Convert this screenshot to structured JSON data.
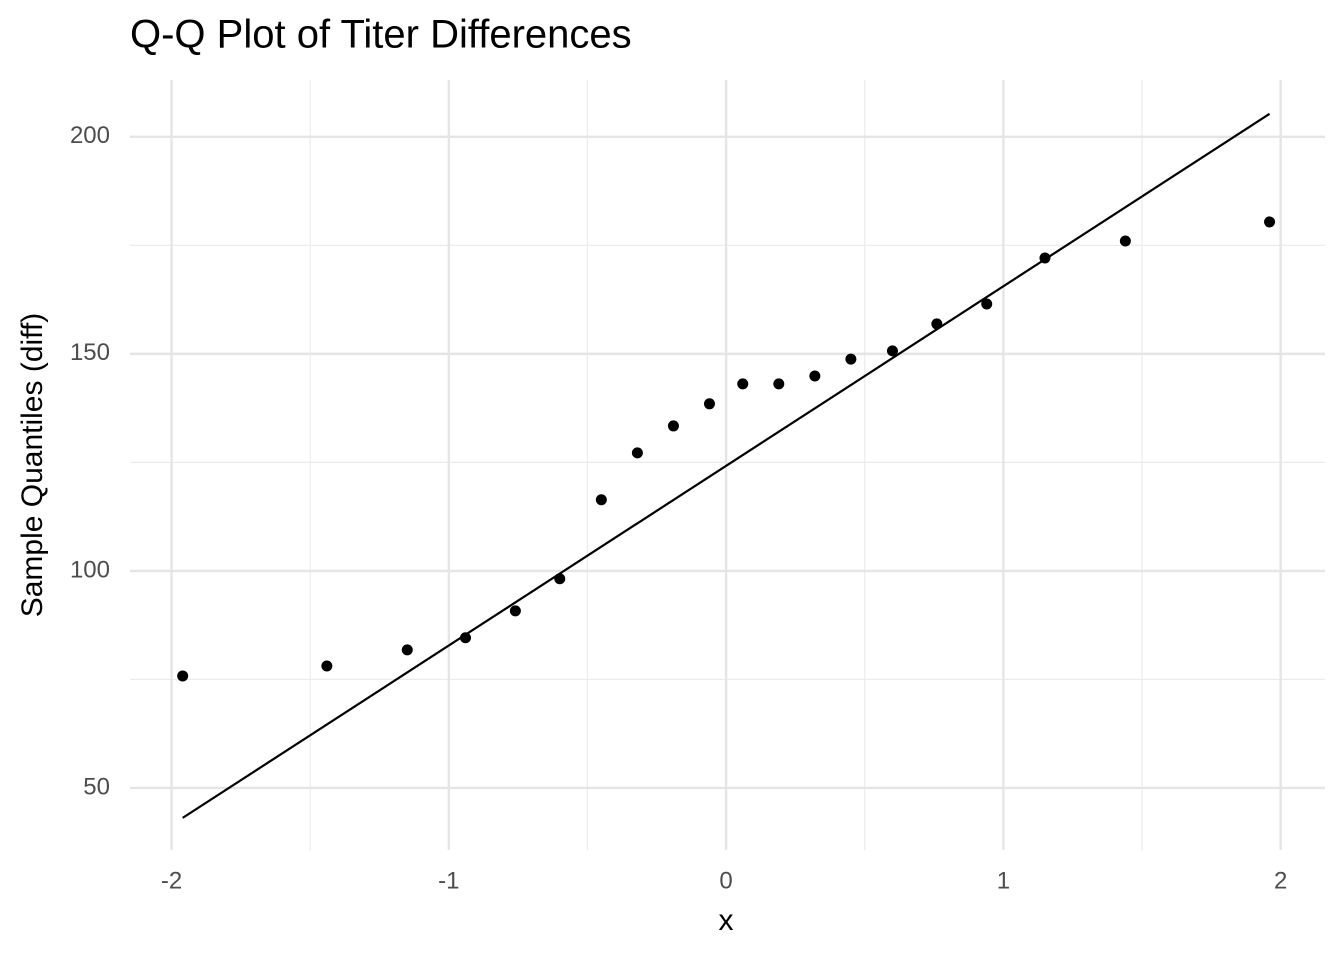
{
  "chart_data": {
    "type": "scatter",
    "title": "Q-Q Plot of Titer Differences",
    "x_label": "x",
    "y_label": "Sample Quantiles (diff)",
    "x": [
      -1.96,
      -1.44,
      -1.15,
      -0.94,
      -0.76,
      -0.6,
      -0.45,
      -0.32,
      -0.19,
      -0.06,
      0.06,
      0.19,
      0.32,
      0.45,
      0.6,
      0.76,
      0.94,
      1.15,
      1.44,
      1.96
    ],
    "y": [
      75.8,
      78.1,
      81.8,
      84.6,
      90.8,
      98.2,
      116.4,
      127.2,
      133.4,
      138.5,
      143.1,
      143.1,
      144.9,
      148.8,
      150.7,
      156.9,
      161.5,
      172.1,
      176.0,
      180.4
    ],
    "color": "#000000",
    "line": {
      "x": [
        -1.96,
        1.96
      ],
      "y": [
        43.1,
        205.3
      ],
      "color": "#000000"
    },
    "xlim": [
      -2.15,
      2.16
    ],
    "ylim": [
      35.7,
      213.1
    ],
    "xticks": [
      -2,
      -1,
      0,
      1,
      2
    ],
    "yticks": [
      50,
      100,
      150,
      200
    ],
    "x_minor_ticks": [
      -1.5,
      -0.5,
      0.5,
      1.5
    ],
    "y_minor_ticks": [
      75,
      125,
      175
    ],
    "grid": true
  }
}
